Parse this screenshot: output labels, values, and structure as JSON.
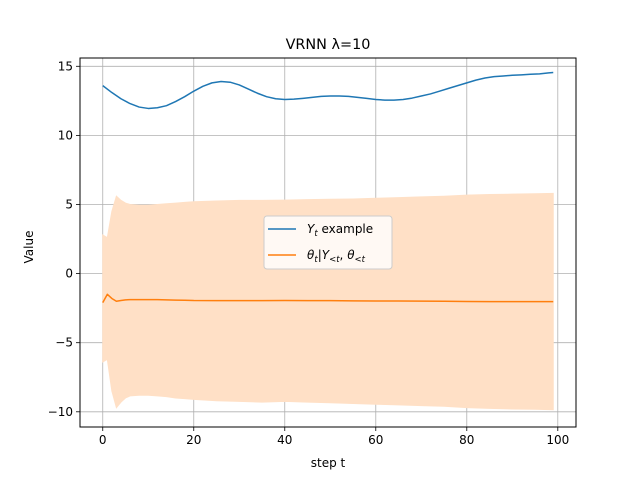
{
  "chart_data": {
    "type": "line",
    "title": "VRNN λ=10",
    "xlabel": "step t",
    "ylabel": "Value",
    "xlim": [
      -5,
      104
    ],
    "ylim": [
      -11.1,
      15.6
    ],
    "xticks": [
      0,
      20,
      40,
      60,
      80,
      100
    ],
    "xtick_labels": [
      "0",
      "20",
      "40",
      "60",
      "80",
      "100"
    ],
    "yticks": [
      -10,
      -5,
      0,
      5,
      10,
      15
    ],
    "ytick_labels": [
      "−10",
      "−5",
      "0",
      "5",
      "10",
      "15"
    ],
    "grid": true,
    "legend_placement": "center",
    "series": [
      {
        "name": "Y_t example",
        "color": "#1f77b4",
        "x": [
          0,
          2,
          4,
          6,
          8,
          10,
          12,
          14,
          16,
          18,
          20,
          22,
          24,
          26,
          28,
          30,
          32,
          34,
          36,
          38,
          40,
          42,
          44,
          46,
          48,
          50,
          52,
          54,
          56,
          58,
          60,
          62,
          64,
          66,
          68,
          70,
          72,
          74,
          76,
          78,
          80,
          82,
          84,
          86,
          88,
          90,
          92,
          94,
          96,
          98,
          99
        ],
        "y": [
          13.6,
          13.1,
          12.65,
          12.3,
          12.05,
          11.95,
          12.0,
          12.15,
          12.45,
          12.8,
          13.2,
          13.55,
          13.8,
          13.9,
          13.85,
          13.65,
          13.35,
          13.05,
          12.8,
          12.65,
          12.6,
          12.62,
          12.68,
          12.75,
          12.82,
          12.85,
          12.85,
          12.82,
          12.75,
          12.68,
          12.6,
          12.55,
          12.55,
          12.6,
          12.7,
          12.85,
          13.0,
          13.2,
          13.4,
          13.6,
          13.8,
          14.0,
          14.15,
          14.25,
          14.3,
          14.35,
          14.38,
          14.42,
          14.45,
          14.52,
          14.55
        ]
      },
      {
        "name": "θ_t | Y_<t, θ_<t",
        "color": "#ff7f0e",
        "x": [
          0,
          1,
          2,
          3,
          4,
          5,
          6,
          8,
          10,
          12,
          14,
          16,
          18,
          20,
          25,
          30,
          35,
          40,
          45,
          50,
          55,
          60,
          65,
          70,
          75,
          80,
          85,
          90,
          95,
          99
        ],
        "y": [
          -2.1,
          -1.5,
          -1.8,
          -2.0,
          -1.95,
          -1.9,
          -1.88,
          -1.88,
          -1.88,
          -1.88,
          -1.9,
          -1.92,
          -1.93,
          -1.95,
          -1.96,
          -1.96,
          -1.96,
          -1.95,
          -1.96,
          -1.96,
          -1.97,
          -1.98,
          -1.98,
          -1.99,
          -2.0,
          -2.02,
          -2.03,
          -2.03,
          -2.03,
          -2.03
        ],
        "band_upper": [
          2.8,
          2.6,
          4.5,
          5.6,
          5.3,
          5.1,
          5.0,
          4.95,
          4.95,
          5.0,
          5.05,
          5.1,
          5.15,
          5.2,
          5.25,
          5.3,
          5.3,
          5.32,
          5.35,
          5.38,
          5.4,
          5.45,
          5.5,
          5.55,
          5.6,
          5.68,
          5.72,
          5.75,
          5.78,
          5.8
        ],
        "band_lower": [
          -6.4,
          -6.2,
          -8.5,
          -9.7,
          -9.3,
          -9.0,
          -8.85,
          -8.8,
          -8.8,
          -8.85,
          -8.9,
          -9.0,
          -9.05,
          -9.1,
          -9.2,
          -9.25,
          -9.3,
          -9.25,
          -9.3,
          -9.35,
          -9.4,
          -9.45,
          -9.5,
          -9.55,
          -9.6,
          -9.7,
          -9.75,
          -9.8,
          -9.82,
          -9.85
        ],
        "band_color": "#ffe0c6"
      }
    ],
    "legend": {
      "entries": [
        {
          "label": "Y",
          "sub": "t",
          "rest": " example"
        },
        {
          "label": "θ",
          "sub": "t",
          "rest": "|Y",
          "sub2": "<t",
          "rest2": ", θ",
          "sub3": "<t"
        }
      ]
    }
  }
}
